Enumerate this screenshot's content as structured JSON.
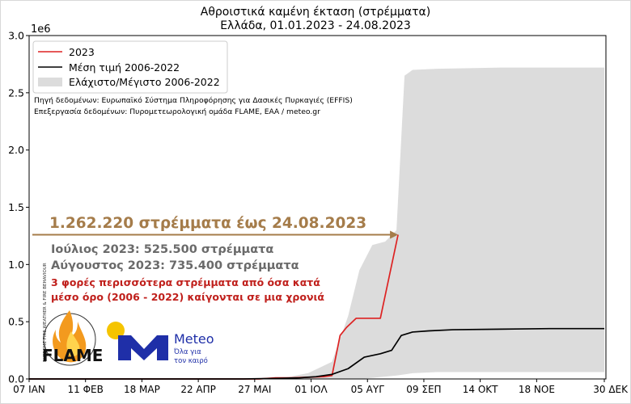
{
  "chart_data": {
    "type": "line",
    "title": "Αθροιστικά καμένη έκταση (στρέμματα)",
    "subtitle": "Ελλάδα, 01.01.2023 - 24.08.2023",
    "xlabel": "",
    "ylabel": "",
    "y_multiplier_label": "1e6",
    "ylim": [
      0,
      3.0
    ],
    "xlim": [
      7,
      365
    ],
    "y_ticks": [
      0.0,
      0.5,
      1.0,
      1.5,
      2.0,
      2.5,
      3.0
    ],
    "y_tick_labels": [
      "0.0",
      "0.5",
      "1.0",
      "1.5",
      "2.0",
      "2.5",
      "3.0"
    ],
    "x_ticks": [
      7,
      42,
      77,
      112,
      147,
      182,
      217,
      252,
      287,
      322,
      364
    ],
    "x_tick_labels": [
      "07 ΙΑΝ",
      "11 ΦΕΒ",
      "18 ΜΑΡ",
      "22 ΑΠΡ",
      "27 ΜΑΙ",
      "01 ΙΟΛ",
      "05 ΑΥΓ",
      "09 ΣΕΠ",
      "14 ΟΚΤ",
      "18 ΝΟΕ",
      "30 ΔΕΚ"
    ],
    "grid": false,
    "legend_position": "top-left",
    "series": [
      {
        "name": "2023",
        "color": "#dd2222",
        "x": [
          7,
          150,
          160,
          170,
          180,
          190,
          195,
          200,
          204,
          210,
          218,
          225,
          236
        ],
        "y": [
          0,
          0.0,
          0.01,
          0.01,
          0.015,
          0.02,
          0.03,
          0.38,
          0.45,
          0.53,
          0.53,
          0.53,
          1.26
        ]
      },
      {
        "name": "Μέση τιμή 2006-2022",
        "color": "#000000",
        "x": [
          7,
          140,
          160,
          175,
          185,
          195,
          205,
          215,
          225,
          232,
          238,
          245,
          255,
          270,
          300,
          330,
          364
        ],
        "y": [
          0,
          0.0,
          0.005,
          0.01,
          0.02,
          0.04,
          0.09,
          0.19,
          0.22,
          0.25,
          0.38,
          0.41,
          0.42,
          0.43,
          0.435,
          0.44,
          0.44
        ]
      }
    ],
    "band": {
      "name": "Ελάχιστο/Μέγιστο 2006-2022",
      "color": "#dcdcdc",
      "x": [
        7,
        140,
        165,
        180,
        195,
        205,
        212,
        220,
        228,
        235,
        240,
        245,
        260,
        300,
        364
      ],
      "lower": [
        0,
        0,
        0,
        0,
        0,
        0,
        0,
        0.01,
        0.02,
        0.03,
        0.04,
        0.05,
        0.06,
        0.06,
        0.06
      ],
      "upper": [
        0,
        0.0,
        0.01,
        0.05,
        0.15,
        0.55,
        0.95,
        1.17,
        1.2,
        1.3,
        2.65,
        2.7,
        2.71,
        2.72,
        2.72
      ]
    }
  },
  "sources": {
    "line1": "Πηγή δεδομένων: Ευρωπαϊκό Σύστημα Πληροφόρησης για Δασικές Πυρκαγιές (EFFIS)",
    "line2": "Επεξεργασία δεδομένων: Πυρομετεωρολογική ομάδα FLAME, ΕΑΑ / meteo.gr"
  },
  "annotations": {
    "headline": "1.262.220 στρέμματα έως 24.08.2023",
    "july": "Ιούλιος 2023: 525.500 στρέμματα",
    "august": "Αύγουστος 2023: 735.400 στρέμματα",
    "note_line1": "3 φορές περισσότερα στρέμματα από όσα κατά",
    "note_line2": "μέσο όρο (2006 - 2022) καίγονται σε μια χρονιά",
    "arrow_target": {
      "x": 236,
      "y": 1.26
    },
    "colors": {
      "headline": "#a57c4a",
      "months": "#6a6a6a",
      "note": "#c0201c"
    }
  },
  "logos": {
    "flame_text": "FLAME",
    "flame_ring_text": "EXTREME FIRE WEATHER & FIRE BEHAVIOUR",
    "meteo_title": "Meteo",
    "meteo_tagline_1": "Όλα για",
    "meteo_tagline_2": "τον καιρό",
    "meteo_colors": {
      "blue": "#1f2fa8",
      "yellow": "#f5c400"
    }
  }
}
